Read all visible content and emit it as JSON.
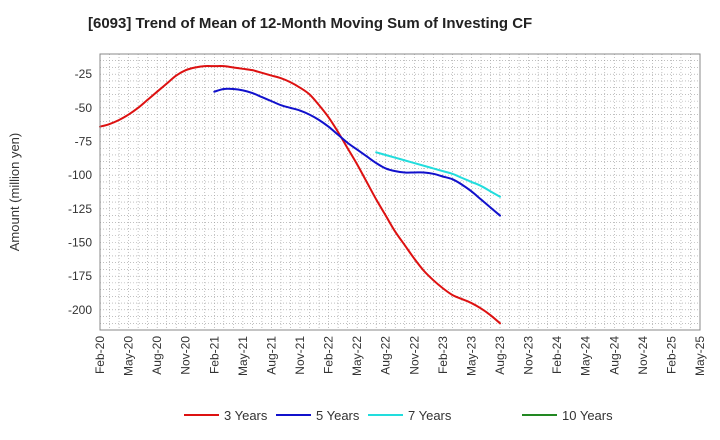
{
  "chart_data": {
    "type": "line",
    "title": "[6093]  Trend of Mean of 12-Month Moving Sum of Investing CF",
    "xlabel": "",
    "ylabel": "Amount (million yen)",
    "ylim": [
      -215,
      -10
    ],
    "yticks": [
      -25,
      -50,
      -75,
      -100,
      -125,
      -150,
      -175,
      -200
    ],
    "grid": true,
    "legend_position": "bottom",
    "x_tick_labels": [
      "Feb-20",
      "May-20",
      "Aug-20",
      "Nov-20",
      "Feb-21",
      "May-21",
      "Aug-21",
      "Nov-21",
      "Feb-22",
      "May-22",
      "Aug-22",
      "Nov-22",
      "Feb-23",
      "May-23",
      "Aug-23",
      "Nov-23",
      "Feb-24",
      "May-24",
      "Aug-24",
      "Nov-24",
      "Feb-25",
      "May-25"
    ],
    "series": [
      {
        "name": "3 Years",
        "color": "#dd1111",
        "points": [
          [
            0,
            -64
          ],
          [
            1,
            -62
          ],
          [
            2,
            -59
          ],
          [
            3,
            -55
          ],
          [
            4,
            -50
          ],
          [
            5,
            -44
          ],
          [
            6,
            -38
          ],
          [
            7,
            -32
          ],
          [
            8,
            -26
          ],
          [
            9,
            -22
          ],
          [
            10,
            -20
          ],
          [
            11,
            -19
          ],
          [
            12,
            -19
          ],
          [
            13,
            -19
          ],
          [
            14,
            -20
          ],
          [
            15,
            -21
          ],
          [
            16,
            -22
          ],
          [
            17,
            -24
          ],
          [
            18,
            -26
          ],
          [
            19,
            -28
          ],
          [
            20,
            -31
          ],
          [
            21,
            -35
          ],
          [
            22,
            -40
          ],
          [
            23,
            -48
          ],
          [
            24,
            -57
          ],
          [
            25,
            -68
          ],
          [
            26,
            -80
          ],
          [
            27,
            -92
          ],
          [
            28,
            -105
          ],
          [
            29,
            -118
          ],
          [
            30,
            -130
          ],
          [
            31,
            -142
          ],
          [
            32,
            -152
          ],
          [
            33,
            -162
          ],
          [
            34,
            -171
          ],
          [
            35,
            -178
          ],
          [
            36,
            -184
          ],
          [
            37,
            -189
          ],
          [
            38,
            -192
          ],
          [
            39,
            -195
          ],
          [
            40,
            -199
          ],
          [
            41,
            -204
          ],
          [
            42,
            -210
          ]
        ]
      },
      {
        "name": "5 Years",
        "color": "#1111cc",
        "points": [
          [
            12,
            -38
          ],
          [
            13,
            -36
          ],
          [
            14,
            -36
          ],
          [
            15,
            -37
          ],
          [
            16,
            -39
          ],
          [
            17,
            -42
          ],
          [
            18,
            -45
          ],
          [
            19,
            -48
          ],
          [
            20,
            -50
          ],
          [
            21,
            -52
          ],
          [
            22,
            -55
          ],
          [
            23,
            -59
          ],
          [
            24,
            -64
          ],
          [
            25,
            -70
          ],
          [
            26,
            -76
          ],
          [
            27,
            -81
          ],
          [
            28,
            -86
          ],
          [
            29,
            -91
          ],
          [
            30,
            -95
          ],
          [
            31,
            -97
          ],
          [
            32,
            -98
          ],
          [
            33,
            -98
          ],
          [
            34,
            -98
          ],
          [
            35,
            -99
          ],
          [
            36,
            -101
          ],
          [
            37,
            -103
          ],
          [
            38,
            -107
          ],
          [
            39,
            -112
          ],
          [
            40,
            -118
          ],
          [
            41,
            -124
          ],
          [
            42,
            -130
          ]
        ]
      },
      {
        "name": "7 Years",
        "color": "#22dddd",
        "points": [
          [
            29,
            -83
          ],
          [
            30,
            -85
          ],
          [
            31,
            -87
          ],
          [
            32,
            -89
          ],
          [
            33,
            -91
          ],
          [
            34,
            -93
          ],
          [
            35,
            -95
          ],
          [
            36,
            -97
          ],
          [
            37,
            -99
          ],
          [
            38,
            -102
          ],
          [
            39,
            -105
          ],
          [
            40,
            -108
          ],
          [
            41,
            -112
          ],
          [
            42,
            -116
          ]
        ]
      },
      {
        "name": "10 Years",
        "color": "#228822",
        "points": []
      }
    ]
  }
}
